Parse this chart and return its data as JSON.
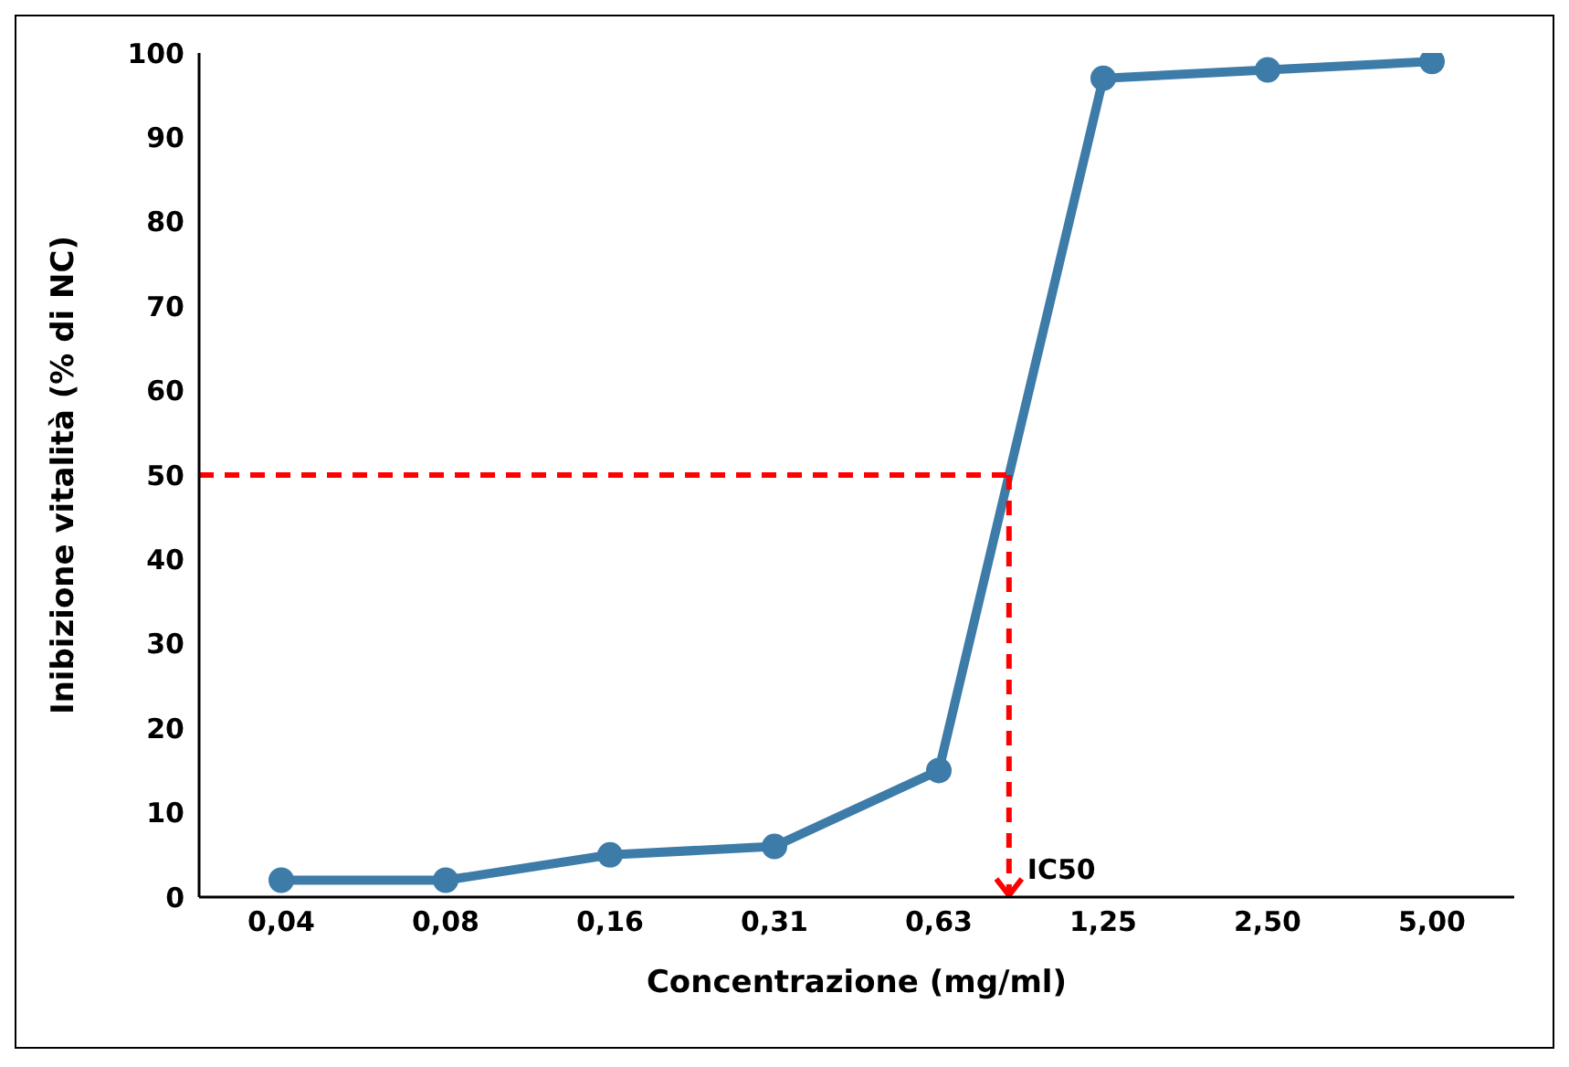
{
  "chart_data": {
    "type": "line",
    "xlabel": "Concentrazione (mg/ml)",
    "ylabel": "Inibizione vitalità (% di NC)",
    "categories": [
      "0,04",
      "0,08",
      "0,16",
      "0,31",
      "0,63",
      "1,25",
      "2,50",
      "5,00"
    ],
    "series": [
      {
        "color": "#3d7ca8",
        "values": [
          2,
          2,
          5,
          6,
          15,
          97,
          98,
          99
        ]
      }
    ],
    "ylim": [
      0,
      100
    ],
    "yticks": [
      0,
      10,
      20,
      30,
      40,
      50,
      60,
      70,
      80,
      90,
      100
    ],
    "marker": "circle",
    "line_style": "solid",
    "grid": false,
    "legend": false,
    "ref_lines": [
      {
        "axis": "y",
        "value": 50,
        "label": "IC50",
        "color": "#ff0000",
        "line_style": "dashed"
      }
    ]
  }
}
